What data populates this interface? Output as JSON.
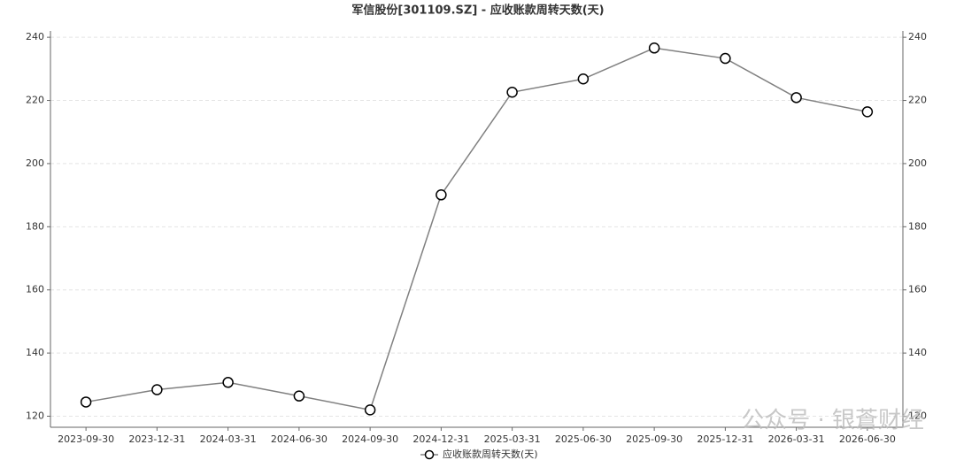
{
  "chart_data": {
    "type": "line",
    "title": "军信股份[301109.SZ] - 应收账款周转天数(天)",
    "categories": [
      "2023-09-30",
      "2023-12-31",
      "2024-03-31",
      "2024-06-30",
      "2024-09-30",
      "2024-12-31",
      "2025-03-31",
      "2025-06-30",
      "2025-09-30",
      "2025-12-31",
      "2026-03-31",
      "2026-06-30"
    ],
    "series": [
      {
        "name": "应收账款周转天数(天)",
        "color": "#808080",
        "values": [
          124.5,
          128.4,
          130.7,
          126.4,
          122.0,
          190.1,
          222.6,
          226.8,
          236.6,
          233.3,
          220.9,
          216.4
        ]
      }
    ],
    "ylim": [
      116.5,
      242
    ],
    "yticks": [
      120,
      140,
      160,
      180,
      200,
      220,
      240
    ],
    "y2lim": [
      116.5,
      242
    ],
    "y2ticks": [
      120,
      140,
      160,
      180,
      200,
      220,
      240
    ],
    "grid": true,
    "legend": "bottom",
    "watermark": "公众号 · 银蒼财经"
  }
}
